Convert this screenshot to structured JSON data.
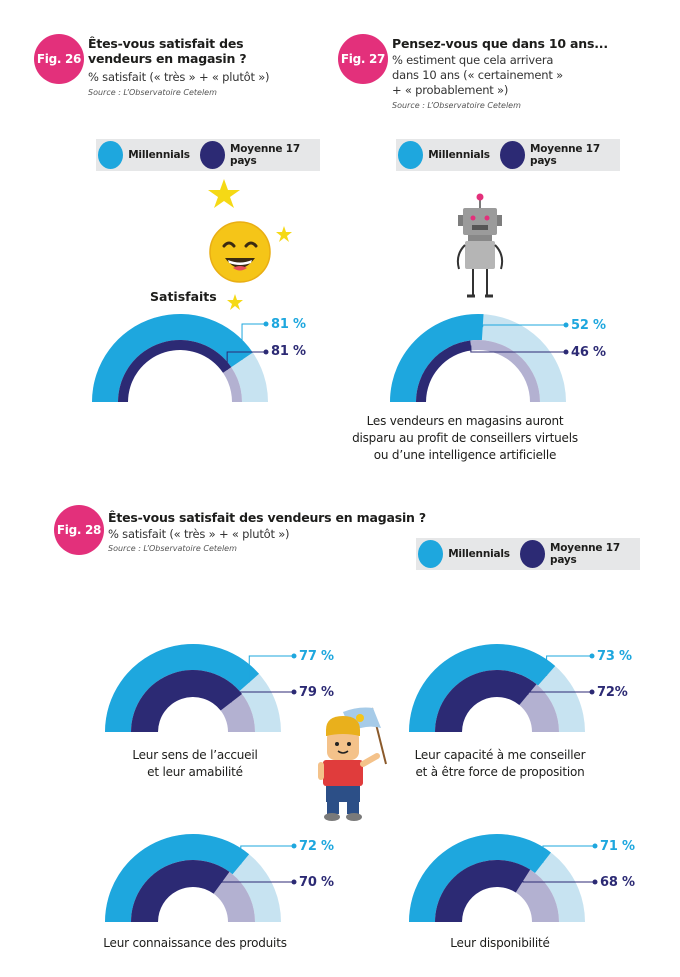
{
  "legend": {
    "millennials": "Millennials",
    "average": "Moyenne 17 pays"
  },
  "colors": {
    "millennials": "#1ea7de",
    "millennials_light": "#c7e3f1",
    "average": "#2c2a74",
    "average_light": "#b3b1d1",
    "badge": "#e3307b"
  },
  "fig26": {
    "badge": "Fig. 26",
    "title": "Êtes-vous satisfait des vendeurs en magasin ?",
    "subtitle": "% satisfait (« très » + « plutôt »)",
    "source": "Source : L’Observatoire Cetelem",
    "label": "Satisfaits"
  },
  "fig27": {
    "badge": "Fig. 27",
    "title": "Pensez-vous que dans 10 ans...",
    "subtitle_line1": "% estiment que cela arrivera",
    "subtitle_line2": "dans 10 ans (« certainement »",
    "subtitle_line3": "+ « probablement »)",
    "source": "Source : L’Observatoire Cetelem",
    "caption_line1": "Les vendeurs en magasins auront",
    "caption_line2": "disparu au profit de conseillers virtuels",
    "caption_line3": "ou d’une intelligence artificielle"
  },
  "fig28": {
    "badge": "Fig. 28",
    "title": "Êtes-vous satisfait des vendeurs en magasin ?",
    "subtitle": "% satisfait (« très » + « plutôt »)",
    "source": "Source : L’Observatoire Cetelem"
  },
  "chart_data": [
    {
      "type": "gauge",
      "id": "fig26",
      "series": [
        {
          "name": "Millennials",
          "value": 81,
          "label": "81 %"
        },
        {
          "name": "Moyenne 17 pays",
          "value": 81,
          "label": "81 %"
        }
      ]
    },
    {
      "type": "gauge",
      "id": "fig27",
      "series": [
        {
          "name": "Millennials",
          "value": 52,
          "label": "52 %"
        },
        {
          "name": "Moyenne 17 pays",
          "value": 46,
          "label": "46 %"
        }
      ]
    },
    {
      "type": "gauge",
      "id": "fig28-accueil",
      "caption": [
        "Leur sens de l’accueil",
        "et leur amabilité"
      ],
      "series": [
        {
          "name": "Millennials",
          "value": 77,
          "label": "77 %"
        },
        {
          "name": "Moyenne 17 pays",
          "value": 79,
          "label": "79 %"
        }
      ]
    },
    {
      "type": "gauge",
      "id": "fig28-conseil",
      "caption": [
        "Leur capacité à me conseiller",
        "et à être force de proposition"
      ],
      "series": [
        {
          "name": "Millennials",
          "value": 73,
          "label": "73 %"
        },
        {
          "name": "Moyenne 17 pays",
          "value": 72,
          "label": "72%"
        }
      ]
    },
    {
      "type": "gauge",
      "id": "fig28-produits",
      "caption": [
        "Leur connaissance des produits"
      ],
      "series": [
        {
          "name": "Millennials",
          "value": 72,
          "label": "72 %"
        },
        {
          "name": "Moyenne 17 pays",
          "value": 70,
          "label": "70 %"
        }
      ]
    },
    {
      "type": "gauge",
      "id": "fig28-disponibilite",
      "caption": [
        "Leur disponibilité"
      ],
      "series": [
        {
          "name": "Millennials",
          "value": 71,
          "label": "71 %"
        },
        {
          "name": "Moyenne 17 pays",
          "value": 68,
          "label": "68 %"
        }
      ]
    }
  ]
}
